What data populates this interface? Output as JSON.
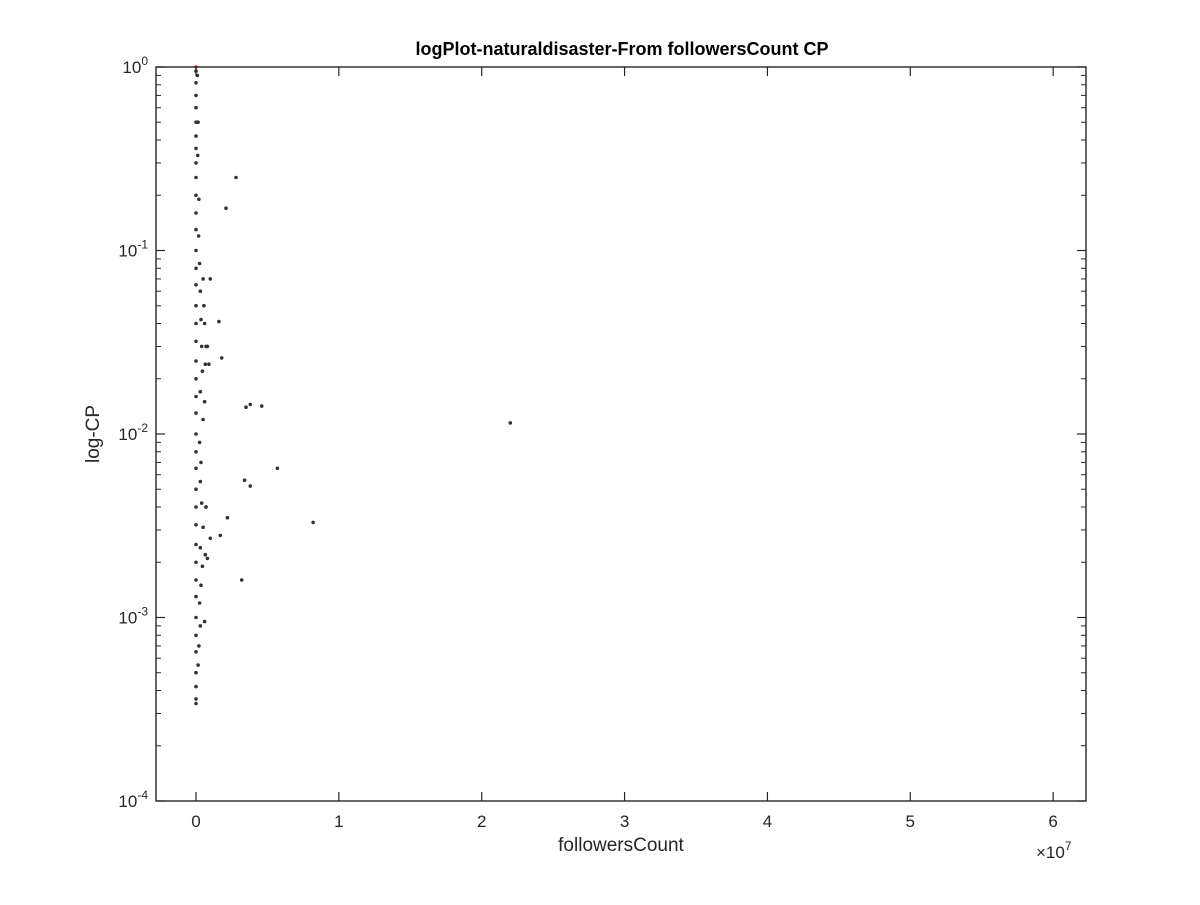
{
  "chart_data": {
    "type": "scatter",
    "title": "logPlot-naturaldisaster-From followersCount CP",
    "xlabel": "followersCount",
    "ylabel": "log-CP",
    "x_scale": "linear",
    "y_scale": "log",
    "xlim": [
      -2800000,
      62300000
    ],
    "ylim": [
      0.0001,
      1
    ],
    "x_ticks": [
      0,
      10000000,
      20000000,
      30000000,
      40000000,
      50000000,
      60000000
    ],
    "x_tick_labels": [
      "0",
      "1",
      "2",
      "3",
      "4",
      "5",
      "6"
    ],
    "x_exponent_label": "×10",
    "x_exponent_power": "7",
    "y_ticks": [
      0.0001,
      0.001,
      0.01,
      0.1,
      1
    ],
    "y_tick_labels": [
      {
        "base": "10",
        "exp": "-4"
      },
      {
        "base": "10",
        "exp": "-3"
      },
      {
        "base": "10",
        "exp": "-2"
      },
      {
        "base": "10",
        "exp": "-1"
      },
      {
        "base": "10",
        "exp": "0"
      }
    ],
    "grid": false,
    "box": true,
    "marker_color": "#333333",
    "highlight_color": "#d62728",
    "highlight_points": [
      {
        "x": 0,
        "y": 1
      }
    ],
    "series": [
      {
        "points": [
          {
            "x": 0,
            "y": 0.95
          },
          {
            "x": 0,
            "y": 0.82
          },
          {
            "x": 0,
            "y": 0.7
          },
          {
            "x": 0,
            "y": 0.6
          },
          {
            "x": 0,
            "y": 0.5
          },
          {
            "x": 0,
            "y": 0.42
          },
          {
            "x": 0,
            "y": 0.36
          },
          {
            "x": 0,
            "y": 0.3
          },
          {
            "x": 0,
            "y": 0.25
          },
          {
            "x": 0,
            "y": 0.2
          },
          {
            "x": 0,
            "y": 0.16
          },
          {
            "x": 0,
            "y": 0.13
          },
          {
            "x": 0,
            "y": 0.1
          },
          {
            "x": 0,
            "y": 0.08
          },
          {
            "x": 0,
            "y": 0.065
          },
          {
            "x": 0,
            "y": 0.05
          },
          {
            "x": 0,
            "y": 0.04
          },
          {
            "x": 0,
            "y": 0.032
          },
          {
            "x": 0,
            "y": 0.025
          },
          {
            "x": 0,
            "y": 0.02
          },
          {
            "x": 0,
            "y": 0.016
          },
          {
            "x": 0,
            "y": 0.013
          },
          {
            "x": 0,
            "y": 0.01
          },
          {
            "x": 0,
            "y": 0.008
          },
          {
            "x": 0,
            "y": 0.0065
          },
          {
            "x": 0,
            "y": 0.005
          },
          {
            "x": 0,
            "y": 0.004
          },
          {
            "x": 0,
            "y": 0.0032
          },
          {
            "x": 0,
            "y": 0.0025
          },
          {
            "x": 0,
            "y": 0.002
          },
          {
            "x": 0,
            "y": 0.0016
          },
          {
            "x": 0,
            "y": 0.0013
          },
          {
            "x": 0,
            "y": 0.001
          },
          {
            "x": 0,
            "y": 0.0008
          },
          {
            "x": 0,
            "y": 0.00065
          },
          {
            "x": 0,
            "y": 0.0005
          },
          {
            "x": 0,
            "y": 0.00042
          },
          {
            "x": 0,
            "y": 0.00036
          },
          {
            "x": 0,
            "y": 0.00034
          },
          {
            "x": 100000,
            "y": 0.9
          },
          {
            "x": 150000,
            "y": 0.5
          },
          {
            "x": 120000,
            "y": 0.33
          },
          {
            "x": 200000,
            "y": 0.19
          },
          {
            "x": 180000,
            "y": 0.12
          },
          {
            "x": 250000,
            "y": 0.085
          },
          {
            "x": 300000,
            "y": 0.06
          },
          {
            "x": 350000,
            "y": 0.042
          },
          {
            "x": 400000,
            "y": 0.03
          },
          {
            "x": 450000,
            "y": 0.022
          },
          {
            "x": 300000,
            "y": 0.017
          },
          {
            "x": 500000,
            "y": 0.012
          },
          {
            "x": 250000,
            "y": 0.009
          },
          {
            "x": 350000,
            "y": 0.007
          },
          {
            "x": 300000,
            "y": 0.0055
          },
          {
            "x": 400000,
            "y": 0.0042
          },
          {
            "x": 500000,
            "y": 0.0031
          },
          {
            "x": 300000,
            "y": 0.0024
          },
          {
            "x": 450000,
            "y": 0.0019
          },
          {
            "x": 350000,
            "y": 0.0015
          },
          {
            "x": 250000,
            "y": 0.0012
          },
          {
            "x": 300000,
            "y": 0.0009
          },
          {
            "x": 200000,
            "y": 0.0007
          },
          {
            "x": 150000,
            "y": 0.00055
          },
          {
            "x": 500000,
            "y": 0.07
          },
          {
            "x": 600000,
            "y": 0.04
          },
          {
            "x": 700000,
            "y": 0.03
          },
          {
            "x": 550000,
            "y": 0.05
          },
          {
            "x": 650000,
            "y": 0.024
          },
          {
            "x": 600000,
            "y": 0.015
          },
          {
            "x": 700000,
            "y": 0.004
          },
          {
            "x": 650000,
            "y": 0.0022
          },
          {
            "x": 2800000,
            "y": 0.25
          },
          {
            "x": 2100000,
            "y": 0.17
          },
          {
            "x": 1000000,
            "y": 0.07
          },
          {
            "x": 1600000,
            "y": 0.041
          },
          {
            "x": 800000,
            "y": 0.03
          },
          {
            "x": 1800000,
            "y": 0.026
          },
          {
            "x": 900000,
            "y": 0.024
          },
          {
            "x": 3500000,
            "y": 0.014
          },
          {
            "x": 3800000,
            "y": 0.0145
          },
          {
            "x": 4600000,
            "y": 0.0142
          },
          {
            "x": 22000000,
            "y": 0.0115
          },
          {
            "x": 5700000,
            "y": 0.0065
          },
          {
            "x": 3400000,
            "y": 0.0056
          },
          {
            "x": 3800000,
            "y": 0.0052
          },
          {
            "x": 700000,
            "y": 0.004
          },
          {
            "x": 2200000,
            "y": 0.0035
          },
          {
            "x": 8200000,
            "y": 0.0033
          },
          {
            "x": 1700000,
            "y": 0.0028
          },
          {
            "x": 1000000,
            "y": 0.0027
          },
          {
            "x": 800000,
            "y": 0.0021
          },
          {
            "x": 3200000,
            "y": 0.0016
          },
          {
            "x": 600000,
            "y": 0.00095
          }
        ]
      }
    ]
  }
}
